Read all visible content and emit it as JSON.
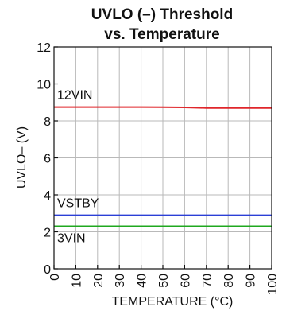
{
  "chart_data": {
    "type": "line",
    "title_lines": [
      "UVLO (–) Threshold",
      "vs. Temperature"
    ],
    "xlabel": "TEMPERATURE (°C)",
    "ylabel": "UVLO– (V)",
    "xlim": [
      0,
      100
    ],
    "ylim": [
      0,
      12
    ],
    "x_ticks": [
      0,
      10,
      20,
      30,
      40,
      50,
      60,
      70,
      80,
      90,
      100
    ],
    "x_tick_labels": [
      "0",
      "10",
      "20",
      "30",
      "40",
      "50",
      "60",
      "70",
      "80",
      "90",
      "100"
    ],
    "y_ticks": [
      0,
      2,
      4,
      6,
      8,
      10,
      12
    ],
    "y_tick_labels": [
      "0",
      "2",
      "4",
      "6",
      "8",
      "10",
      "12"
    ],
    "grid": true,
    "x": [
      0,
      10,
      20,
      30,
      40,
      50,
      60,
      70,
      80,
      90,
      100
    ],
    "series": [
      {
        "name": "12VIN",
        "color": "#e0262b",
        "values": [
          8.75,
          8.75,
          8.75,
          8.75,
          8.75,
          8.74,
          8.73,
          8.7,
          8.7,
          8.7,
          8.7
        ]
      },
      {
        "name": "VSTBY",
        "color": "#2b3fd6",
        "values": [
          2.9,
          2.9,
          2.9,
          2.9,
          2.9,
          2.9,
          2.9,
          2.9,
          2.9,
          2.9,
          2.9
        ]
      },
      {
        "name": "3VIN",
        "color": "#1fa81f",
        "values": [
          2.3,
          2.3,
          2.3,
          2.3,
          2.3,
          2.3,
          2.3,
          2.3,
          2.3,
          2.3,
          2.3
        ]
      }
    ]
  }
}
